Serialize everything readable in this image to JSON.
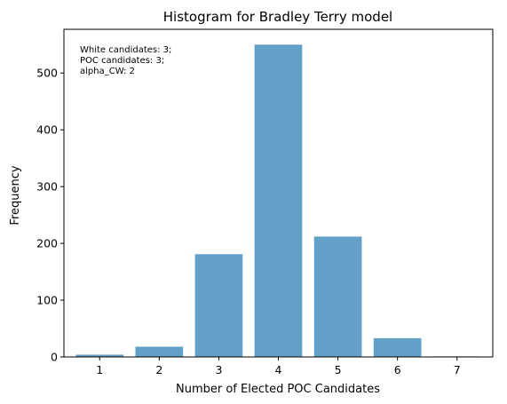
{
  "chart_data": {
    "type": "bar",
    "title": "Histogram for Bradley Terry model",
    "xlabel": "Number of Elected POC Candidates",
    "ylabel": "Frequency",
    "categories": [
      "1",
      "2",
      "3",
      "4",
      "5",
      "6",
      "7"
    ],
    "x": [
      1,
      2,
      3,
      4,
      5,
      6,
      7
    ],
    "values": [
      4,
      18,
      181,
      550,
      212,
      33,
      1
    ],
    "xlim": [
      0.4,
      7.6
    ],
    "ylim": [
      0,
      577
    ],
    "yticks": [
      0,
      100,
      200,
      300,
      400,
      500
    ],
    "yticklabels": [
      "0",
      "100",
      "200",
      "300",
      "400",
      "500"
    ],
    "grid": false,
    "bar_color": "#62a0ca",
    "annotation": [
      "White candidates: 3;",
      "POC candidates: 3;",
      "alpha_CW: 2"
    ]
  }
}
